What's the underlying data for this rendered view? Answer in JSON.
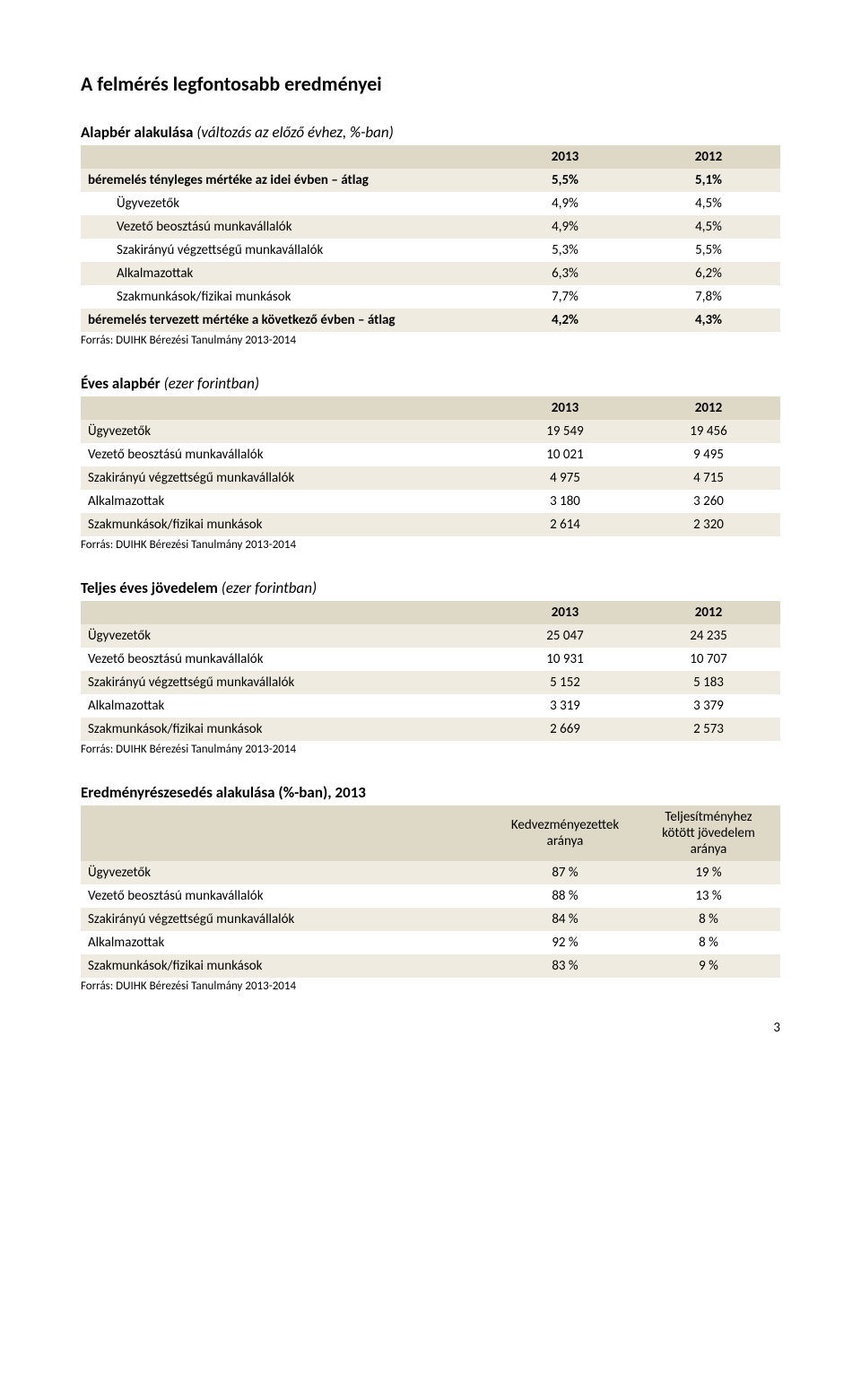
{
  "page": {
    "title": "A felmérés legfontosabb eredményei",
    "number": "3"
  },
  "colors": {
    "band_dark": "#ded8c6",
    "band_light": "#efebe0",
    "background": "#ffffff",
    "text": "#000000"
  },
  "source_text": "Forrás: DUIHK Bérezési Tanulmány 2013-2014",
  "table1": {
    "title_main": "Alapbér alakulása ",
    "title_sub": "(változás az előző évhez, %-ban)",
    "col1": "2013",
    "col2": "2012",
    "rows": [
      {
        "label": "béremelés tényleges mértéke az idei évben – átlag",
        "v1": "5,5%",
        "v2": "5,1%",
        "bold": true,
        "indent": false
      },
      {
        "label": "Ügyvezetők",
        "v1": "4,9%",
        "v2": "4,5%",
        "bold": false,
        "indent": true
      },
      {
        "label": "Vezető beosztású munkavállalók",
        "v1": "4,9%",
        "v2": "4,5%",
        "bold": false,
        "indent": true
      },
      {
        "label": "Szakirányú végzettségű munkavállalók",
        "v1": "5,3%",
        "v2": "5,5%",
        "bold": false,
        "indent": true
      },
      {
        "label": "Alkalmazottak",
        "v1": "6,3%",
        "v2": "6,2%",
        "bold": false,
        "indent": true
      },
      {
        "label": "Szakmunkások/fizikai munkások",
        "v1": "7,7%",
        "v2": "7,8%",
        "bold": false,
        "indent": true
      },
      {
        "label": "béremelés tervezett mértéke a következő évben – átlag",
        "v1": "4,2%",
        "v2": "4,3%",
        "bold": true,
        "indent": false
      }
    ]
  },
  "table2": {
    "title_main": "Éves alapbér ",
    "title_sub": "(ezer forintban)",
    "col1": "2013",
    "col2": "2012",
    "rows": [
      {
        "label": "Ügyvezetők",
        "v1": "19 549",
        "v2": "19 456"
      },
      {
        "label": "Vezető beosztású munkavállalók",
        "v1": "10 021",
        "v2": "9 495"
      },
      {
        "label": "Szakirányú végzettségű munkavállalók",
        "v1": "4 975",
        "v2": "4 715"
      },
      {
        "label": "Alkalmazottak",
        "v1": "3 180",
        "v2": "3 260"
      },
      {
        "label": "Szakmunkások/fizikai munkások",
        "v1": "2 614",
        "v2": "2 320"
      }
    ]
  },
  "table3": {
    "title_main": "Teljes éves jövedelem ",
    "title_sub": "(ezer forintban)",
    "col1": "2013",
    "col2": "2012",
    "rows": [
      {
        "label": "Ügyvezetők",
        "v1": "25 047",
        "v2": "24 235"
      },
      {
        "label": "Vezető beosztású munkavállalók",
        "v1": "10 931",
        "v2": "10 707"
      },
      {
        "label": "Szakirányú végzettségű munkavállalók",
        "v1": "5 152",
        "v2": "5 183"
      },
      {
        "label": "Alkalmazottak",
        "v1": "3 319",
        "v2": "3 379"
      },
      {
        "label": "Szakmunkások/fizikai munkások",
        "v1": "2 669",
        "v2": "2 573"
      }
    ]
  },
  "table4": {
    "title_main": "Eredményrészesedés alakulása (%-ban), 2013",
    "col1_line1": "Kedvezményezettek",
    "col1_line2": "aránya",
    "col2_line1": "Teljesítményhez",
    "col2_line2": "kötött jövedelem",
    "col2_line3": "aránya",
    "rows": [
      {
        "label": "Ügyvezetők",
        "v1": "87 %",
        "v2": "19 %"
      },
      {
        "label": "Vezető beosztású munkavállalók",
        "v1": "88 %",
        "v2": "13 %"
      },
      {
        "label": "Szakirányú végzettségű munkavállalók",
        "v1": "84 %",
        "v2": "8 %"
      },
      {
        "label": "Alkalmazottak",
        "v1": "92 %",
        "v2": "8 %"
      },
      {
        "label": "Szakmunkások/fizikai munkások",
        "v1": "83 %",
        "v2": "9 %"
      }
    ]
  }
}
